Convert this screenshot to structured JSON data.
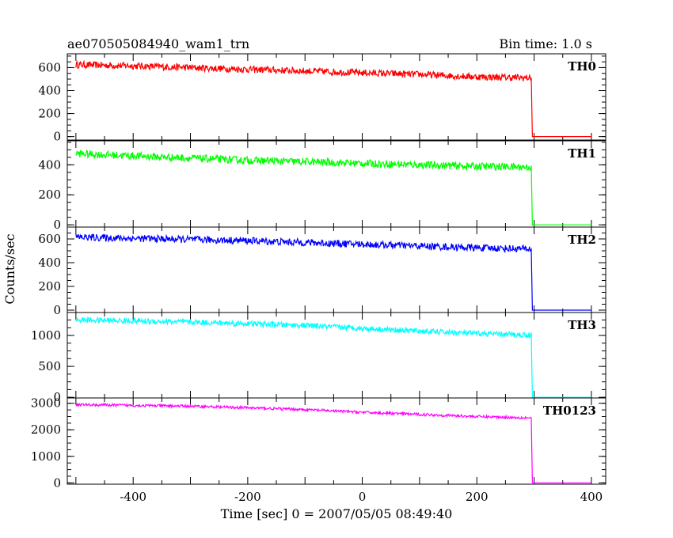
{
  "header": {
    "title_left": "ae070505084940_wam1_trn",
    "title_right": "Bin time: 1.0 s"
  },
  "chart_data": {
    "type": "line",
    "xlabel": "Time [sec] 0 = 2007/05/05 08:49:40",
    "ylabel": "Counts/sec",
    "xlim": [
      -515,
      425
    ],
    "xticks": [
      -400,
      -200,
      0,
      200,
      400
    ],
    "grid": false,
    "series": [
      {
        "name": "TH0",
        "color": "#ff0000",
        "ylim": [
          -30,
          720
        ],
        "yticks": [
          0,
          200,
          400,
          600
        ],
        "points": [
          [
            -500,
            625
          ],
          [
            -400,
            615
          ],
          [
            -300,
            600
          ],
          [
            -200,
            585
          ],
          [
            -100,
            570
          ],
          [
            0,
            555
          ],
          [
            100,
            540
          ],
          [
            200,
            520
          ],
          [
            295,
            510
          ],
          [
            297,
            0
          ],
          [
            400,
            0
          ]
        ],
        "noise": 30
      },
      {
        "name": "TH1",
        "color": "#00ff00",
        "ylim": [
          -15,
          560
        ],
        "yticks": [
          0,
          200,
          400
        ],
        "points": [
          [
            -500,
            475
          ],
          [
            -400,
            460
          ],
          [
            -300,
            445
          ],
          [
            -200,
            430
          ],
          [
            -100,
            420
          ],
          [
            0,
            410
          ],
          [
            100,
            400
          ],
          [
            200,
            390
          ],
          [
            295,
            385
          ],
          [
            297,
            0
          ],
          [
            400,
            0
          ]
        ],
        "noise": 25
      },
      {
        "name": "TH2",
        "color": "#0000ff",
        "ylim": [
          -20,
          700
        ],
        "yticks": [
          0,
          200,
          400,
          600
        ],
        "points": [
          [
            -500,
            615
          ],
          [
            -400,
            605
          ],
          [
            -300,
            595
          ],
          [
            -200,
            585
          ],
          [
            -100,
            570
          ],
          [
            0,
            555
          ],
          [
            100,
            540
          ],
          [
            200,
            525
          ],
          [
            295,
            515
          ],
          [
            297,
            0
          ],
          [
            400,
            0
          ]
        ],
        "noise": 30
      },
      {
        "name": "TH3",
        "color": "#00ffff",
        "ylim": [
          -10,
          1370
        ],
        "yticks": [
          0,
          500,
          1000
        ],
        "points": [
          [
            -500,
            1250
          ],
          [
            -400,
            1235
          ],
          [
            -300,
            1215
          ],
          [
            -200,
            1190
          ],
          [
            -100,
            1160
          ],
          [
            0,
            1115
          ],
          [
            100,
            1070
          ],
          [
            200,
            1030
          ],
          [
            295,
            1005
          ],
          [
            297,
            0
          ],
          [
            400,
            0
          ]
        ],
        "noise": 45
      },
      {
        "name": "TH0123",
        "color": "#ff00ff",
        "ylim": [
          -50,
          3200
        ],
        "yticks": [
          0,
          1000,
          2000,
          3000
        ],
        "points": [
          [
            -500,
            2950
          ],
          [
            -400,
            2920
          ],
          [
            -300,
            2890
          ],
          [
            -200,
            2830
          ],
          [
            -100,
            2760
          ],
          [
            0,
            2660
          ],
          [
            100,
            2580
          ],
          [
            200,
            2500
          ],
          [
            295,
            2450
          ],
          [
            297,
            0
          ],
          [
            400,
            0
          ]
        ],
        "noise": 50
      }
    ]
  }
}
